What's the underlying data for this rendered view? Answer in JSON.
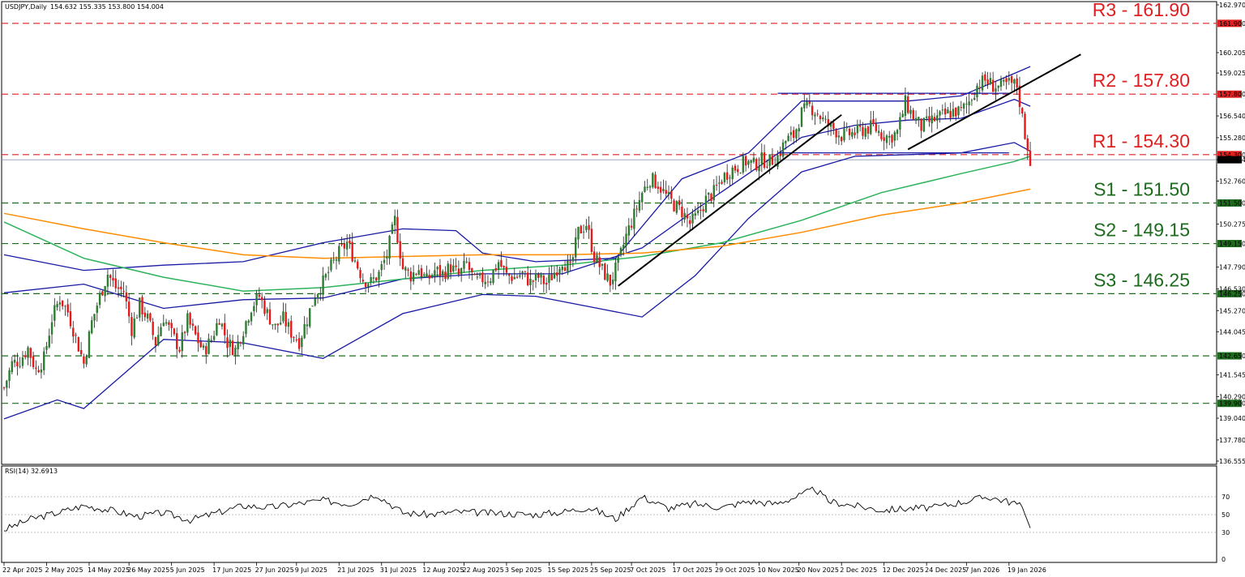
{
  "header": {
    "symbol": "USDJPY,Daily",
    "ohlc": "154.632 155.335 153.800 154.004"
  },
  "rsi_header": "RSI(14) 32.6913",
  "current_price_label": "154.004",
  "colors": {
    "up_candle": "#2e7d32",
    "down_candle": "#e51b1b",
    "bollinger": "#1a1aa6",
    "ma_green": "#2cb35a",
    "ma_orange": "#ff8c00",
    "resistance": "#e02020",
    "support": "#1d6b1d",
    "trendline": "#000000",
    "rsi_line": "#000000"
  },
  "chart_data": {
    "type": "candlestick",
    "instrument": "USDJPY",
    "timeframe": "Daily",
    "ylim": [
      136.555,
      162.97
    ],
    "y_ticks": [
      "162.970",
      "161.900",
      "160.205",
      "159.025",
      "157.800",
      "156.540",
      "155.280",
      "154.300",
      "154.004",
      "152.760",
      "151.500",
      "150.275",
      "149.150",
      "147.790",
      "146.530",
      "146.250",
      "145.270",
      "144.045",
      "142.650",
      "141.545",
      "140.290",
      "139.900",
      "139.040",
      "137.780",
      "136.555"
    ],
    "x_labels": [
      "22 Apr 2025",
      "2 May 2025",
      "14 May 2025",
      "26 May 2025",
      "5 Jun 2025",
      "17 Jun 2025",
      "27 Jun 2025",
      "9 Jul 2025",
      "21 Jul 2025",
      "31 Jul 2025",
      "12 Aug 2025",
      "22 Aug 2025",
      "3 Sep 2025",
      "15 Sep 2025",
      "25 Sep 2025",
      "7 Oct 2025",
      "17 Oct 2025",
      "29 Oct 2025",
      "10 Nov 2025",
      "20 Nov 2025",
      "2 Dec 2025",
      "12 Dec 2025",
      "24 Dec 2025",
      "7 Jan 2026",
      "19 Jan 2026"
    ],
    "close_path": [
      [
        0,
        140.8
      ],
      [
        3,
        142.2
      ],
      [
        6,
        142.4
      ],
      [
        9,
        143.1
      ],
      [
        12,
        141.8
      ],
      [
        15,
        142.5
      ],
      [
        18,
        144.8
      ],
      [
        21,
        146.0
      ],
      [
        24,
        145.2
      ],
      [
        27,
        143.7
      ],
      [
        30,
        142.2
      ],
      [
        33,
        144.6
      ],
      [
        36,
        146.1
      ],
      [
        39,
        147.4
      ],
      [
        42,
        146.6
      ],
      [
        45,
        146.4
      ],
      [
        48,
        144.2
      ],
      [
        51,
        145.6
      ],
      [
        54,
        144.8
      ],
      [
        57,
        143.4
      ],
      [
        60,
        144.9
      ],
      [
        63,
        143.9
      ],
      [
        66,
        143.1
      ],
      [
        69,
        144.7
      ],
      [
        72,
        143.8
      ],
      [
        75,
        142.9
      ],
      [
        78,
        143.6
      ],
      [
        81,
        144.9
      ],
      [
        84,
        143.4
      ],
      [
        87,
        143.0
      ],
      [
        90,
        144.2
      ],
      [
        93,
        145.5
      ],
      [
        96,
        146.1
      ],
      [
        99,
        145.1
      ],
      [
        102,
        144.3
      ],
      [
        105,
        144.8
      ],
      [
        108,
        144.0
      ],
      [
        111,
        143.5
      ],
      [
        114,
        144.8
      ],
      [
        117,
        146.2
      ],
      [
        120,
        146.9
      ],
      [
        123,
        147.8
      ],
      [
        126,
        148.6
      ],
      [
        129,
        149.2
      ],
      [
        132,
        148.2
      ],
      [
        135,
        147.1
      ],
      [
        138,
        146.9
      ],
      [
        141,
        147.4
      ],
      [
        144,
        148.5
      ],
      [
        147,
        150.5
      ],
      [
        150,
        147.7
      ],
      [
        153,
        147.3
      ],
      [
        156,
        147.7
      ],
      [
        159,
        147.0
      ],
      [
        162,
        147.6
      ],
      [
        165,
        147.4
      ],
      [
        168,
        147.8
      ],
      [
        171,
        147.3
      ],
      [
        174,
        148.0
      ],
      [
        177,
        146.9
      ],
      [
        180,
        147.1
      ],
      [
        183,
        147.2
      ],
      [
        186,
        148.1
      ],
      [
        189,
        147.3
      ],
      [
        192,
        147.2
      ],
      [
        195,
        147.4
      ],
      [
        198,
        146.9
      ],
      [
        201,
        147.2
      ],
      [
        204,
        146.8
      ],
      [
        207,
        147.5
      ],
      [
        210,
        148.2
      ],
      [
        213,
        147.6
      ],
      [
        216,
        149.8
      ],
      [
        219,
        150.3
      ],
      [
        222,
        148.4
      ],
      [
        225,
        147.6
      ],
      [
        228,
        146.9
      ],
      [
        231,
        148.0
      ],
      [
        234,
        149.6
      ],
      [
        237,
        150.8
      ],
      [
        240,
        152.1
      ],
      [
        243,
        152.9
      ],
      [
        246,
        152.6
      ],
      [
        249,
        151.9
      ],
      [
        252,
        151.4
      ],
      [
        255,
        151.0
      ],
      [
        258,
        150.3
      ],
      [
        261,
        150.8
      ],
      [
        264,
        151.7
      ],
      [
        267,
        152.1
      ],
      [
        270,
        152.9
      ],
      [
        273,
        153.4
      ],
      [
        276,
        153.6
      ],
      [
        279,
        153.9
      ],
      [
        282,
        153.7
      ],
      [
        285,
        154.0
      ],
      [
        288,
        153.9
      ],
      [
        291,
        154.2
      ],
      [
        294,
        155.1
      ],
      [
        297,
        155.4
      ],
      [
        300,
        156.7
      ],
      [
        303,
        157.1
      ],
      [
        306,
        156.7
      ],
      [
        309,
        156.1
      ],
      [
        312,
        155.8
      ],
      [
        315,
        155.4
      ],
      [
        318,
        155.5
      ],
      [
        321,
        155.6
      ],
      [
        324,
        155.8
      ],
      [
        327,
        155.9
      ],
      [
        330,
        155.5
      ],
      [
        333,
        155.3
      ],
      [
        336,
        155.6
      ],
      [
        339,
        157.3
      ],
      [
        342,
        156.5
      ],
      [
        345,
        155.9
      ],
      [
        348,
        156.2
      ],
      [
        351,
        156.4
      ],
      [
        354,
        156.6
      ],
      [
        357,
        156.8
      ],
      [
        360,
        156.8
      ],
      [
        363,
        157.4
      ],
      [
        366,
        158.3
      ],
      [
        369,
        158.6
      ],
      [
        372,
        158.3
      ],
      [
        375,
        158.2
      ],
      [
        378,
        158.4
      ],
      [
        381,
        158.3
      ],
      [
        384,
        155.5
      ],
      [
        386,
        154.0
      ]
    ],
    "candle_count": 387,
    "series": [
      {
        "name": "Bollinger Bands",
        "kind": "bands",
        "upper": [
          [
            0,
            148.5
          ],
          [
            30,
            147.6
          ],
          [
            60,
            147.9
          ],
          [
            90,
            148.1
          ],
          [
            120,
            149.2
          ],
          [
            150,
            150.0
          ],
          [
            170,
            149.9
          ],
          [
            180,
            148.6
          ],
          [
            200,
            148.1
          ],
          [
            230,
            148.3
          ],
          [
            255,
            152.9
          ],
          [
            280,
            154.4
          ],
          [
            300,
            157.4
          ],
          [
            320,
            157.4
          ],
          [
            340,
            157.4
          ],
          [
            360,
            157.7
          ],
          [
            380,
            159.0
          ],
          [
            386,
            159.4
          ]
        ],
        "middle": [
          [
            0,
            146.3
          ],
          [
            30,
            146.8
          ],
          [
            60,
            145.4
          ],
          [
            90,
            145.9
          ],
          [
            120,
            146.0
          ],
          [
            150,
            147.1
          ],
          [
            180,
            147.4
          ],
          [
            210,
            147.4
          ],
          [
            240,
            148.9
          ],
          [
            260,
            151.1
          ],
          [
            280,
            153.2
          ],
          [
            300,
            155.3
          ],
          [
            320,
            156.0
          ],
          [
            340,
            156.3
          ],
          [
            360,
            156.4
          ],
          [
            380,
            157.5
          ],
          [
            386,
            157.1
          ]
        ],
        "lower": [
          [
            0,
            139.0
          ],
          [
            20,
            140.1
          ],
          [
            30,
            139.6
          ],
          [
            60,
            143.6
          ],
          [
            90,
            143.4
          ],
          [
            120,
            142.5
          ],
          [
            150,
            145.1
          ],
          [
            180,
            146.2
          ],
          [
            200,
            146.1
          ],
          [
            240,
            144.9
          ],
          [
            260,
            147.3
          ],
          [
            280,
            150.6
          ],
          [
            300,
            153.3
          ],
          [
            320,
            154.2
          ],
          [
            340,
            154.3
          ],
          [
            360,
            154.4
          ],
          [
            380,
            155.0
          ],
          [
            386,
            154.5
          ]
        ]
      },
      {
        "name": "MA (green)",
        "kind": "line",
        "values": [
          [
            0,
            150.4
          ],
          [
            30,
            148.3
          ],
          [
            60,
            147.2
          ],
          [
            90,
            146.4
          ],
          [
            120,
            146.6
          ],
          [
            150,
            147.1
          ],
          [
            180,
            147.6
          ],
          [
            210,
            147.9
          ],
          [
            240,
            148.4
          ],
          [
            270,
            149.2
          ],
          [
            300,
            150.5
          ],
          [
            330,
            152.1
          ],
          [
            360,
            153.2
          ],
          [
            380,
            153.9
          ],
          [
            386,
            154.2
          ]
        ]
      },
      {
        "name": "MA (orange)",
        "kind": "line",
        "values": [
          [
            0,
            150.9
          ],
          [
            30,
            150.0
          ],
          [
            60,
            149.2
          ],
          [
            90,
            148.5
          ],
          [
            120,
            148.3
          ],
          [
            150,
            148.4
          ],
          [
            180,
            148.5
          ],
          [
            210,
            148.5
          ],
          [
            240,
            148.6
          ],
          [
            270,
            149.0
          ],
          [
            300,
            149.8
          ],
          [
            330,
            150.8
          ],
          [
            360,
            151.5
          ],
          [
            386,
            152.3
          ]
        ]
      }
    ],
    "levels": [
      {
        "name": "R3",
        "value": 161.9,
        "label": "R3 - 161.90",
        "tag": "161.900",
        "kind": "resistance"
      },
      {
        "name": "R2",
        "value": 157.8,
        "label": "R2 - 157.80",
        "tag": "157.800",
        "kind": "resistance"
      },
      {
        "name": "R1",
        "value": 154.3,
        "label": "R1 - 154.30",
        "tag": "154.300",
        "kind": "resistance"
      },
      {
        "name": "S1",
        "value": 151.5,
        "label": "S1 - 151.50",
        "tag": "151.500",
        "kind": "support"
      },
      {
        "name": "S2",
        "value": 149.15,
        "label": "S2 - 149.15",
        "tag": "149.150",
        "kind": "support"
      },
      {
        "name": "S3",
        "value": 146.25,
        "label": "S3 - 146.25",
        "tag": "146.250",
        "kind": "support"
      },
      {
        "name": "",
        "value": 142.65,
        "label": "",
        "tag": "142.650",
        "kind": "support"
      },
      {
        "name": "",
        "value": 139.9,
        "label": "",
        "tag": "139.900",
        "kind": "support"
      }
    ],
    "channels": [
      {
        "from": [
          291,
          157.85
        ],
        "to": [
          378,
          157.85
        ]
      },
      {
        "from": [
          291,
          154.4
        ],
        "to": [
          378,
          154.4
        ]
      }
    ],
    "trendlines": [
      {
        "from": [
          231,
          146.7
        ],
        "to": [
          315,
          156.6
        ]
      },
      {
        "from": [
          340,
          154.6
        ],
        "to": [
          405,
          160.1
        ]
      }
    ],
    "rsi": {
      "name": "RSI(14)",
      "ylim": [
        0,
        100
      ],
      "ticks": [
        "70",
        "50",
        "30",
        "0"
      ],
      "levels": [
        70,
        50,
        30
      ],
      "values": [
        [
          0,
          33
        ],
        [
          10,
          45
        ],
        [
          20,
          52
        ],
        [
          30,
          60
        ],
        [
          40,
          55
        ],
        [
          50,
          48
        ],
        [
          60,
          52
        ],
        [
          70,
          44
        ],
        [
          80,
          52
        ],
        [
          90,
          60
        ],
        [
          100,
          58
        ],
        [
          110,
          62
        ],
        [
          120,
          66
        ],
        [
          130,
          62
        ],
        [
          140,
          73
        ],
        [
          150,
          52
        ],
        [
          160,
          50
        ],
        [
          170,
          53
        ],
        [
          180,
          52
        ],
        [
          190,
          51
        ],
        [
          200,
          50
        ],
        [
          210,
          53
        ],
        [
          220,
          58
        ],
        [
          230,
          45
        ],
        [
          240,
          70
        ],
        [
          250,
          57
        ],
        [
          260,
          62
        ],
        [
          270,
          58
        ],
        [
          280,
          65
        ],
        [
          290,
          62
        ],
        [
          300,
          72
        ],
        [
          305,
          79
        ],
        [
          310,
          65
        ],
        [
          320,
          60
        ],
        [
          330,
          55
        ],
        [
          340,
          57
        ],
        [
          350,
          58
        ],
        [
          360,
          64
        ],
        [
          370,
          70
        ],
        [
          380,
          63
        ],
        [
          383,
          58
        ],
        [
          386,
          35
        ]
      ]
    }
  }
}
